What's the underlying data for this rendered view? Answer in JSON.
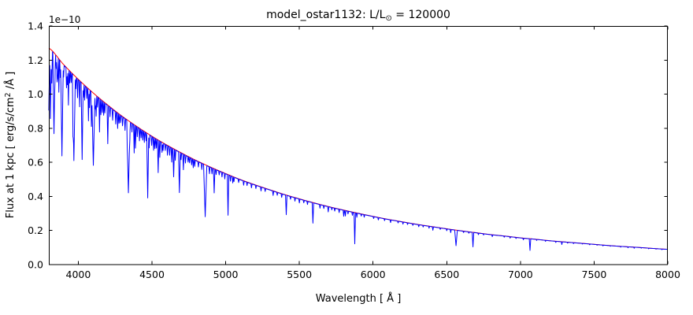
{
  "chart_data": {
    "type": "line",
    "title": "model_ostar1132: L/L⊙ = 120000",
    "title_parts": [
      {
        "t": "model_ostar1132: L/L"
      },
      {
        "t": "⊙",
        "sub": true
      },
      {
        "t": " = 120000"
      }
    ],
    "xlabel": "Wavelength [ Å ]",
    "ylabel": "Flux at 1 kpc [ erg/s/cm² /Å ]",
    "ylabel_parts": [
      {
        "t": "Flux at 1 kpc [ erg/s/cm"
      },
      {
        "t": "2",
        "sup": true
      },
      {
        "t": " /Å ]"
      }
    ],
    "y_offset_label": "1e−10",
    "x_range": [
      3800,
      8000
    ],
    "y_range": [
      0,
      1.4
    ],
    "y_scale_factor": "1e-10",
    "x_ticks": [
      4000,
      4500,
      5000,
      5500,
      6000,
      6500,
      7000,
      7500,
      8000
    ],
    "y_ticks": [
      "0.0",
      "0.2",
      "0.4",
      "0.6",
      "0.8",
      "1.0",
      "1.2",
      "1.4"
    ],
    "grid": false,
    "legend": null,
    "colors": {
      "continuum": "#ff0000",
      "spectrum": "#0000ff",
      "axis": "#000000",
      "background": "#ffffff"
    },
    "continuum": {
      "x": [
        3800,
        3900,
        4000,
        4100,
        4200,
        4300,
        4400,
        4500,
        4600,
        4700,
        4800,
        4900,
        5000,
        5100,
        5200,
        5300,
        5400,
        5500,
        5600,
        5700,
        5800,
        5900,
        6000,
        6100,
        6200,
        6300,
        6400,
        6500,
        6600,
        6700,
        6800,
        6900,
        7000,
        7100,
        7200,
        7300,
        7400,
        7500,
        7600,
        7700,
        7800,
        7900,
        8000
      ],
      "y": [
        1.27,
        1.174,
        1.087,
        1.008,
        0.936,
        0.869,
        0.809,
        0.753,
        0.702,
        0.655,
        0.611,
        0.571,
        0.534,
        0.499,
        0.468,
        0.439,
        0.411,
        0.386,
        0.362,
        0.34,
        0.32,
        0.301,
        0.283,
        0.266,
        0.251,
        0.236,
        0.223,
        0.21,
        0.198,
        0.187,
        0.176,
        0.167,
        0.157,
        0.149,
        0.14,
        0.133,
        0.126,
        0.119,
        0.112,
        0.106,
        0.101,
        0.095,
        0.09
      ]
    },
    "spectrum": {
      "continuum_offset_factor": 0.997,
      "absorption_lines": [
        [
          3790,
          0.3,
          6
        ],
        [
          3798,
          0.4,
          7
        ],
        [
          3811,
          0.32,
          5
        ],
        [
          3820,
          0.15,
          5
        ],
        [
          3835,
          0.38,
          8
        ],
        [
          3856,
          0.12,
          4
        ],
        [
          3868,
          0.16,
          4
        ],
        [
          3889,
          0.46,
          9
        ],
        [
          3926,
          0.08,
          4
        ],
        [
          3933,
          0.18,
          4
        ],
        [
          3964,
          0.18,
          4
        ],
        [
          3970,
          0.45,
          10
        ],
        [
          4009,
          0.14,
          4
        ],
        [
          4026,
          0.42,
          7
        ],
        [
          4069,
          0.18,
          4
        ],
        [
          4089,
          0.2,
          4
        ],
        [
          4102,
          0.42,
          11
        ],
        [
          4121,
          0.12,
          4
        ],
        [
          4144,
          0.2,
          4
        ],
        [
          4200,
          0.24,
          5
        ],
        [
          4267,
          0.1,
          4
        ],
        [
          4340,
          0.5,
          11
        ],
        [
          4379,
          0.2,
          4
        ],
        [
          4388,
          0.16,
          4
        ],
        [
          4471,
          0.49,
          7
        ],
        [
          4511,
          0.1,
          4
        ],
        [
          4542,
          0.26,
          5
        ],
        [
          4553,
          0.13,
          4
        ],
        [
          4634,
          0.12,
          4
        ],
        [
          4647,
          0.24,
          5
        ],
        [
          4686,
          0.36,
          6
        ],
        [
          4713,
          0.14,
          4
        ],
        [
          4861,
          0.52,
          11
        ],
        [
          4922,
          0.25,
          5
        ],
        [
          5016,
          0.45,
          5
        ],
        [
          5048,
          0.07,
          4
        ],
        [
          5411,
          0.28,
          5
        ],
        [
          5592,
          0.33,
          5
        ],
        [
          5696,
          0.09,
          4
        ],
        [
          5801,
          0.11,
          4
        ],
        [
          5876,
          0.6,
          5
        ],
        [
          6406,
          0.09,
          4
        ],
        [
          6527,
          0.09,
          4
        ],
        [
          6563,
          0.45,
          9
        ],
        [
          6678,
          0.45,
          5
        ],
        [
          7065,
          0.45,
          5
        ],
        [
          7281,
          0.12,
          4
        ]
      ],
      "minor_lines": [
        [
          3805,
          0.1
        ],
        [
          3815,
          0.08
        ],
        [
          3842,
          0.08
        ],
        [
          3850,
          0.06
        ],
        [
          3860,
          0.1
        ],
        [
          3878,
          0.08
        ],
        [
          3900,
          0.06
        ],
        [
          3920,
          0.1
        ],
        [
          3942,
          0.06
        ],
        [
          3952,
          0.05
        ],
        [
          3983,
          0.06
        ],
        [
          3995,
          0.1
        ],
        [
          4035,
          0.07
        ],
        [
          4043,
          0.08
        ],
        [
          4058,
          0.06
        ],
        [
          4076,
          0.1
        ],
        [
          4116,
          0.08
        ],
        [
          4130,
          0.06
        ],
        [
          4153,
          0.09
        ],
        [
          4163,
          0.07
        ],
        [
          4172,
          0.08
        ],
        [
          4180,
          0.06
        ],
        [
          4215,
          0.06
        ],
        [
          4233,
          0.07
        ],
        [
          4254,
          0.08
        ],
        [
          4276,
          0.06
        ],
        [
          4285,
          0.05
        ],
        [
          4300,
          0.06
        ],
        [
          4317,
          0.08
        ],
        [
          4332,
          0.06
        ],
        [
          4350,
          0.08
        ],
        [
          4364,
          0.06
        ],
        [
          4400,
          0.07
        ],
        [
          4415,
          0.09
        ],
        [
          4426,
          0.06
        ],
        [
          4437,
          0.07
        ],
        [
          4448,
          0.08
        ],
        [
          4460,
          0.06
        ],
        [
          4481,
          0.1
        ],
        [
          4498,
          0.07
        ],
        [
          4520,
          0.08
        ],
        [
          4530,
          0.07
        ],
        [
          4568,
          0.08
        ],
        [
          4575,
          0.06
        ],
        [
          4590,
          0.05
        ],
        [
          4605,
          0.08
        ],
        [
          4620,
          0.07
        ],
        [
          4658,
          0.09
        ],
        [
          4697,
          0.06
        ],
        [
          4727,
          0.07
        ],
        [
          4745,
          0.05
        ],
        [
          4755,
          0.05
        ],
        [
          4769,
          0.06
        ],
        [
          4780,
          0.08
        ],
        [
          4790,
          0.06
        ],
        [
          4815,
          0.05
        ],
        [
          4838,
          0.06
        ],
        [
          4890,
          0.07
        ],
        [
          4907,
          0.06
        ],
        [
          4935,
          0.05
        ],
        [
          4956,
          0.04
        ],
        [
          4975,
          0.05
        ],
        [
          4994,
          0.06
        ],
        [
          5032,
          0.06
        ],
        [
          5056,
          0.05
        ],
        [
          5088,
          0.04
        ],
        [
          5122,
          0.05
        ],
        [
          5145,
          0.04
        ],
        [
          5175,
          0.05
        ],
        [
          5205,
          0.04
        ],
        [
          5240,
          0.05
        ],
        [
          5268,
          0.04
        ],
        [
          5322,
          0.06
        ],
        [
          5350,
          0.04
        ],
        [
          5380,
          0.05
        ],
        [
          5440,
          0.04
        ],
        [
          5470,
          0.05
        ],
        [
          5500,
          0.06
        ],
        [
          5530,
          0.04
        ],
        [
          5555,
          0.05
        ],
        [
          5640,
          0.06
        ],
        [
          5666,
          0.05
        ],
        [
          5720,
          0.04
        ],
        [
          5740,
          0.05
        ],
        [
          5770,
          0.06
        ],
        [
          5812,
          0.1
        ],
        [
          5830,
          0.05
        ],
        [
          5860,
          0.06
        ],
        [
          5890,
          0.08
        ],
        [
          5920,
          0.04
        ],
        [
          5940,
          0.05
        ],
        [
          6004,
          0.04
        ],
        [
          6036,
          0.05
        ],
        [
          6078,
          0.04
        ],
        [
          6119,
          0.06
        ],
        [
          6170,
          0.04
        ],
        [
          6203,
          0.05
        ],
        [
          6234,
          0.04
        ],
        [
          6270,
          0.04
        ],
        [
          6310,
          0.05
        ],
        [
          6340,
          0.04
        ],
        [
          6380,
          0.05
        ],
        [
          6456,
          0.04
        ],
        [
          6500,
          0.05
        ],
        [
          6614,
          0.04
        ],
        [
          6650,
          0.04
        ],
        [
          6715,
          0.05
        ],
        [
          6750,
          0.04
        ],
        [
          6809,
          0.06
        ],
        [
          6890,
          0.04
        ],
        [
          6930,
          0.05
        ],
        [
          6970,
          0.04
        ],
        [
          7020,
          0.06
        ],
        [
          7110,
          0.04
        ],
        [
          7170,
          0.04
        ],
        [
          7240,
          0.05
        ],
        [
          7320,
          0.04
        ],
        [
          7360,
          0.04
        ],
        [
          7420,
          0.03
        ],
        [
          7470,
          0.04
        ],
        [
          7520,
          0.03
        ],
        [
          7560,
          0.04
        ],
        [
          7610,
          0.03
        ],
        [
          7680,
          0.04
        ],
        [
          7730,
          0.05
        ],
        [
          7772,
          0.06
        ],
        [
          7820,
          0.03
        ],
        [
          7870,
          0.04
        ],
        [
          7920,
          0.03
        ],
        [
          7960,
          0.04
        ]
      ]
    }
  }
}
